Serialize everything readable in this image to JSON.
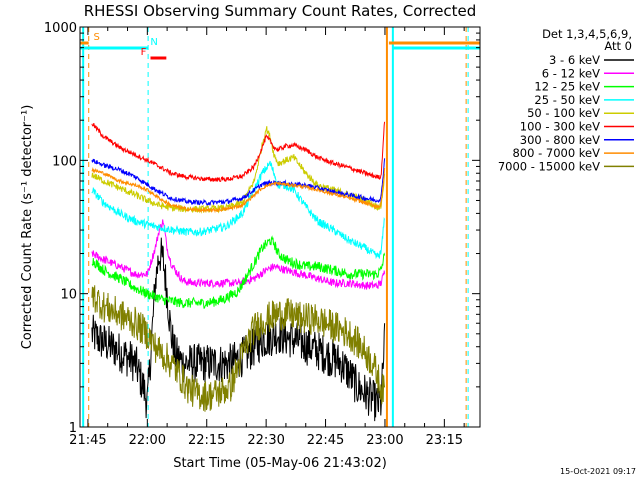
{
  "chart_data": {
    "type": "line",
    "title": "RHESSI Observing Summary Count Rates, Corrected",
    "xlabel": "Start Time (05-May-06 21:43:02)",
    "ylabel": "Corrected Count Rate (s⁻¹ detector⁻¹)",
    "yscale": "log",
    "ylim": [
      1,
      1000
    ],
    "xlim_minutes": [
      -2,
      99
    ],
    "x_unit": "minutes after 21:45",
    "x_ticks": [
      {
        "label": "21:45",
        "value": 0
      },
      {
        "label": "22:00",
        "value": 15
      },
      {
        "label": "22:15",
        "value": 30
      },
      {
        "label": "22:30",
        "value": 45
      },
      {
        "label": "22:45",
        "value": 60
      },
      {
        "label": "23:00",
        "value": 75
      },
      {
        "label": "23:15",
        "value": 90
      }
    ],
    "y_ticks": [
      {
        "label": "1",
        "value": 1
      },
      {
        "label": "10",
        "value": 10
      },
      {
        "label": "100",
        "value": 100
      },
      {
        "label": "1000",
        "value": 1000
      }
    ],
    "legend_header": [
      "Det 1,3,4,5,6,9,",
      "Att 0"
    ],
    "legend_position": "right",
    "data_gap_minutes": [
      75.3,
      99
    ],
    "series": [
      {
        "name": "3 - 6 keV",
        "color": "#000000",
        "x": [
          1,
          3,
          6,
          9,
          12,
          14,
          15,
          16,
          17,
          18,
          19,
          20,
          21,
          22,
          24,
          26,
          28,
          30,
          33,
          36,
          40,
          44,
          48,
          52,
          56,
          60,
          64,
          66,
          68,
          70,
          72,
          73,
          74,
          75
        ],
        "values": [
          5,
          4.5,
          4,
          3.5,
          3,
          2,
          1.5,
          4,
          12,
          20,
          18,
          10,
          5,
          3.5,
          3,
          3,
          3,
          3,
          3,
          3,
          3.5,
          4.5,
          5,
          4.5,
          4,
          3.5,
          3,
          2.5,
          2,
          1.8,
          1.6,
          1.5,
          1.5,
          5
        ]
      },
      {
        "name": "6 - 12 keV",
        "color": "#ff00ff",
        "x": [
          1,
          4,
          8,
          12,
          15,
          17,
          18,
          19,
          20,
          21,
          22,
          24,
          27,
          30,
          34,
          38,
          42,
          45,
          47,
          50,
          54,
          58,
          62,
          66,
          70,
          73,
          74,
          75
        ],
        "values": [
          20,
          18,
          16,
          14,
          14,
          22,
          30,
          35,
          22,
          17,
          15,
          12.5,
          12,
          12,
          12,
          12,
          13,
          15,
          16,
          15,
          14,
          13,
          12,
          12,
          11.5,
          11.5,
          12,
          15
        ]
      },
      {
        "name": "12 - 25 keV",
        "color": "#00ff00",
        "x": [
          1,
          4,
          8,
          12,
          15,
          17,
          19,
          21,
          24,
          27,
          30,
          34,
          38,
          42,
          44,
          46,
          47,
          48,
          50,
          52,
          55,
          58,
          62,
          66,
          70,
          73,
          74,
          75
        ],
        "values": [
          18,
          15,
          13,
          11,
          10,
          9.5,
          9,
          8.8,
          8.5,
          8.5,
          8.5,
          9,
          10.5,
          17,
          22,
          25,
          24,
          20,
          18,
          17,
          16,
          16,
          15,
          14,
          14,
          14,
          15,
          20
        ]
      },
      {
        "name": "25 - 50 keV",
        "color": "#00ffff",
        "x": [
          1,
          4,
          8,
          12,
          15,
          17,
          19,
          22,
          25,
          28,
          31,
          35,
          39,
          42,
          44,
          46,
          47,
          48,
          50,
          52,
          55,
          58,
          62,
          66,
          70,
          73,
          74,
          75
        ],
        "values": [
          60,
          48,
          40,
          35,
          33,
          32,
          31,
          30,
          29,
          29,
          30,
          32,
          40,
          60,
          80,
          95,
          80,
          65,
          65,
          60,
          45,
          35,
          30,
          25,
          22,
          19,
          20,
          40
        ]
      },
      {
        "name": "50 - 100 keV",
        "color": "#cccc00",
        "x": [
          1,
          4,
          8,
          12,
          15,
          18,
          21,
          25,
          30,
          35,
          39,
          42,
          44,
          45,
          46,
          47,
          48,
          50,
          52,
          55,
          58,
          62,
          66,
          70,
          73,
          74,
          75
        ],
        "values": [
          78,
          70,
          62,
          55,
          50,
          46,
          44,
          43,
          43,
          44,
          48,
          70,
          130,
          175,
          150,
          110,
          95,
          100,
          105,
          80,
          65,
          60,
          55,
          50,
          45,
          45,
          80
        ]
      },
      {
        "name": "100 - 300 keV",
        "color": "#ff0000",
        "x": [
          1,
          4,
          8,
          12,
          15,
          18,
          21,
          25,
          30,
          35,
          39,
          42,
          44,
          45,
          46,
          47,
          48,
          50,
          52,
          55,
          58,
          62,
          66,
          70,
          73,
          74,
          75
        ],
        "values": [
          190,
          150,
          125,
          110,
          100,
          90,
          80,
          75,
          72,
          72,
          76,
          90,
          125,
          150,
          140,
          125,
          120,
          128,
          130,
          120,
          105,
          95,
          88,
          80,
          75,
          75,
          220
        ]
      },
      {
        "name": "300 - 800 keV",
        "color": "#0000ff",
        "x": [
          1,
          4,
          8,
          12,
          15,
          18,
          21,
          25,
          30,
          35,
          39,
          42,
          44,
          46,
          48,
          50,
          52,
          55,
          58,
          62,
          66,
          70,
          73,
          74,
          75
        ],
        "values": [
          100,
          92,
          85,
          75,
          66,
          58,
          52,
          49,
          48,
          49,
          52,
          60,
          66,
          68,
          68,
          67,
          66,
          65,
          62,
          58,
          55,
          52,
          50,
          52,
          110
        ]
      },
      {
        "name": "800 - 7000 keV",
        "color": "#ff8c00",
        "x": [
          1,
          4,
          8,
          12,
          15,
          18,
          21,
          25,
          30,
          35,
          39,
          42,
          44,
          46,
          48,
          50,
          52,
          55,
          58,
          62,
          66,
          70,
          73,
          74,
          75
        ],
        "values": [
          85,
          80,
          70,
          65,
          60,
          52,
          46,
          43,
          42,
          43,
          46,
          55,
          62,
          66,
          67,
          66,
          65,
          63,
          60,
          56,
          52,
          48,
          45,
          46,
          90
        ]
      },
      {
        "name": "7000 - 15000 keV",
        "color": "#808000",
        "x": [
          1,
          4,
          8,
          12,
          15,
          17,
          19,
          21,
          23,
          25,
          27,
          30,
          33,
          36,
          39,
          42,
          45,
          48,
          51,
          54,
          57,
          60,
          63,
          66,
          69,
          72,
          74,
          75
        ],
        "values": [
          10,
          8,
          7,
          6,
          5,
          4,
          3.5,
          3,
          2.5,
          2,
          1.8,
          1.7,
          1.8,
          2,
          3.5,
          5.5,
          6.5,
          7,
          7,
          6.5,
          6.5,
          6,
          5.5,
          5,
          4,
          3,
          2,
          1.8
        ]
      }
    ],
    "flags": [
      {
        "label": "S",
        "color": "#ff8c00",
        "spans_minutes": [
          [
            -2,
            0.2
          ],
          [
            76,
            99
          ]
        ]
      },
      {
        "label": "N",
        "color": "#00ffff",
        "spans_minutes": [
          [
            -2,
            15.2
          ],
          [
            77,
            99
          ]
        ]
      },
      {
        "label": "F",
        "color": "#ff0000",
        "spans_minutes": [
          [
            15.8,
            19.8
          ]
        ]
      }
    ],
    "vertical_markers": [
      {
        "minutes": 0.2,
        "color": "#ff8c00",
        "style": "dashed"
      },
      {
        "minutes": -1.2,
        "color": "#00ffff",
        "style": "solid"
      },
      {
        "minutes": 15.2,
        "color": "#00ffff",
        "style": "dashed"
      },
      {
        "minutes": 75.5,
        "color": "#ff8c00",
        "style": "solid"
      },
      {
        "minutes": 77,
        "color": "#00ffff",
        "style": "solid"
      },
      {
        "minutes": 95.5,
        "color": "#ff8c00",
        "style": "dashed"
      },
      {
        "minutes": 96,
        "color": "#00ffff",
        "style": "dashed"
      }
    ],
    "timestamp": "15-Oct-2021 09:17"
  }
}
